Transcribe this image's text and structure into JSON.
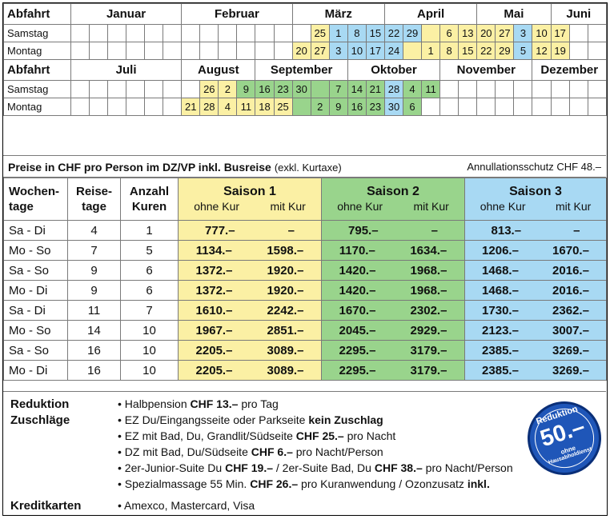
{
  "calendar": {
    "block1": {
      "header": "Abfahrt",
      "months": [
        "Januar",
        "Februar",
        "März",
        "April",
        "Mai",
        "Juni"
      ],
      "rows": [
        {
          "label": "Samstag",
          "cells": [
            "",
            "",
            "",
            "",
            "",
            "",
            "",
            "",
            "",
            "",
            "",
            "",
            "",
            "25",
            "1",
            "8",
            "15",
            "22",
            "29",
            "",
            "6",
            "13",
            "20",
            "27",
            "3",
            "10",
            "17",
            "",
            ""
          ]
        },
        {
          "label": "Montag",
          "cells": [
            "",
            "",
            "",
            "",
            "",
            "",
            "",
            "",
            "",
            "",
            "",
            "",
            "20",
            "27",
            "3",
            "10",
            "17",
            "24",
            "",
            "1",
            "8",
            "15",
            "22",
            "29",
            "5",
            "12",
            "19",
            "",
            ""
          ]
        }
      ]
    },
    "block2": {
      "header": "Abfahrt",
      "months": [
        "Juli",
        "August",
        "September",
        "Oktober",
        "November",
        "Dezember"
      ],
      "rows": [
        {
          "label": "Samstag",
          "cells": [
            "",
            "",
            "",
            "",
            "",
            "",
            "",
            "26",
            "2",
            "9",
            "16",
            "23",
            "30",
            "",
            "7",
            "14",
            "21",
            "28",
            "4",
            "11",
            "",
            "",
            "",
            "",
            "",
            "",
            "",
            "",
            ""
          ]
        },
        {
          "label": "Montag",
          "cells": [
            "",
            "",
            "",
            "",
            "",
            "",
            "21",
            "28",
            "4",
            "11",
            "18",
            "25",
            "",
            "2",
            "9",
            "16",
            "23",
            "30",
            "6",
            "",
            "",
            "",
            "",
            "",
            "",
            "",
            "",
            "",
            ""
          ]
        }
      ]
    },
    "colors": {
      "yellow": "#fbf0a4",
      "green": "#99d48c",
      "blue": "#a8d9f3"
    }
  },
  "prices": {
    "title": "Preise in CHF pro Person im DZ/VP inkl. Busreise",
    "title_ext": "(exkl. Kurtaxe)",
    "annullation": "Annullationsschutz CHF 48.–",
    "headers": {
      "wochentage": "Wochen-\ntage",
      "reisetage": "Reise-\ntage",
      "kuren": "Anzahl\nKuren",
      "ohne": "ohne Kur",
      "mit": "mit Kur"
    },
    "seasons": [
      "Saison 1",
      "Saison 2",
      "Saison 3"
    ],
    "rows": [
      {
        "days": "Sa - Di",
        "reise": "4",
        "kuren": "1",
        "s1": [
          "777.–",
          "–"
        ],
        "s2": [
          "795.–",
          "–"
        ],
        "s3": [
          "813.–",
          "–"
        ]
      },
      {
        "days": "Mo - So",
        "reise": "7",
        "kuren": "5",
        "s1": [
          "1134.–",
          "1598.–"
        ],
        "s2": [
          "1170.–",
          "1634.–"
        ],
        "s3": [
          "1206.–",
          "1670.–"
        ]
      },
      {
        "days": "Sa - So",
        "reise": "9",
        "kuren": "6",
        "s1": [
          "1372.–",
          "1920.–"
        ],
        "s2": [
          "1420.–",
          "1968.–"
        ],
        "s3": [
          "1468.–",
          "2016.–"
        ]
      },
      {
        "days": "Mo - Di",
        "reise": "9",
        "kuren": "6",
        "s1": [
          "1372.–",
          "1920.–"
        ],
        "s2": [
          "1420.–",
          "1968.–"
        ],
        "s3": [
          "1468.–",
          "2016.–"
        ]
      },
      {
        "days": "Sa - Di",
        "reise": "11",
        "kuren": "7",
        "s1": [
          "1610.–",
          "2242.–"
        ],
        "s2": [
          "1670.–",
          "2302.–"
        ],
        "s3": [
          "1730.–",
          "2362.–"
        ]
      },
      {
        "days": "Mo - So",
        "reise": "14",
        "kuren": "10",
        "s1": [
          "1967.–",
          "2851.–"
        ],
        "s2": [
          "2045.–",
          "2929.–"
        ],
        "s3": [
          "2123.–",
          "3007.–"
        ]
      },
      {
        "days": "Sa - So",
        "reise": "16",
        "kuren": "10",
        "s1": [
          "2205.–",
          "3089.–"
        ],
        "s2": [
          "2295.–",
          "3179.–"
        ],
        "s3": [
          "2385.–",
          "3269.–"
        ]
      },
      {
        "days": "Mo - Di",
        "reise": "16",
        "kuren": "10",
        "s1": [
          "2205.–",
          "3089.–"
        ],
        "s2": [
          "2295.–",
          "3179.–"
        ],
        "s3": [
          "2385.–",
          "3269.–"
        ]
      }
    ]
  },
  "bottom": {
    "label_reduktion": "Reduktion",
    "label_zuschlaege": "Zuschläge",
    "label_kreditkarten": "Kreditkarten",
    "items": [
      {
        "pre": "• Halbpension ",
        "bold": "CHF 13.–",
        "post": " pro Tag"
      },
      {
        "pre": "• EZ Du/Eingangsseite oder Parkseite ",
        "bold": "kein Zuschlag",
        "post": ""
      },
      {
        "pre": "• EZ mit Bad, Du, Grandlit/Südseite ",
        "bold": "CHF 25.–",
        "post": " pro Nacht"
      },
      {
        "pre": "• DZ mit Bad, Du/Südseite ",
        "bold": "CHF 6.–",
        "post": " pro Nacht/Person"
      },
      {
        "pre": "• 2er-Junior-Suite Du ",
        "bold": "CHF 19.–",
        "mid": " / 2er-Suite Bad, Du ",
        "bold2": "CHF 38.–",
        "post": " pro Nacht/Person"
      },
      {
        "pre": "• Spezialmassage 55 Min. ",
        "bold": "CHF 26.–",
        "mid": " pro Kuranwendung / Ozonzusatz ",
        "bold2": "inkl.",
        "post": ""
      }
    ],
    "credit": "• Amexco, Mastercard, Visa"
  },
  "badge": {
    "top": "Reduktion",
    "number": "50.–",
    "bottom1": "ohne",
    "bottom2": "Hausabholdienst",
    "color": "#1f56b8"
  }
}
